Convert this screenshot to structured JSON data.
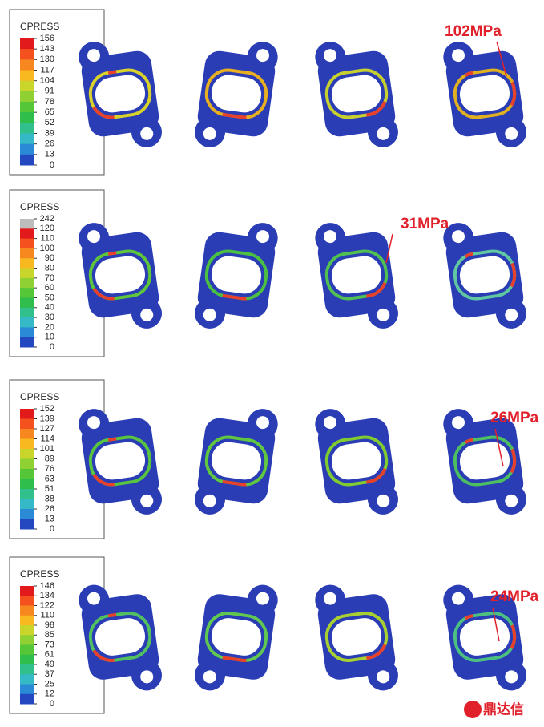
{
  "rows": [
    {
      "legend": {
        "title": "CPRESS",
        "labels": [
          156,
          143,
          130,
          117,
          104,
          91,
          78,
          65,
          52,
          39,
          26,
          13,
          0
        ]
      },
      "annotation": "102MPa"
    },
    {
      "legend": {
        "title": "CPRESS",
        "labels": [
          242,
          120,
          110,
          100,
          90,
          80,
          70,
          60,
          50,
          40,
          30,
          20,
          10,
          0
        ]
      },
      "annotation": "31MPa"
    },
    {
      "legend": {
        "title": "CPRESS",
        "labels": [
          152,
          139,
          127,
          114,
          101,
          89,
          76,
          63,
          51,
          38,
          26,
          13,
          0
        ]
      },
      "annotation": "26MPa"
    },
    {
      "legend": {
        "title": "CPRESS",
        "labels": [
          146,
          134,
          122,
          110,
          98,
          85,
          73,
          61,
          49,
          37,
          25,
          12,
          0
        ]
      },
      "annotation": "24MPa"
    }
  ],
  "watermark": "鼎达信"
}
